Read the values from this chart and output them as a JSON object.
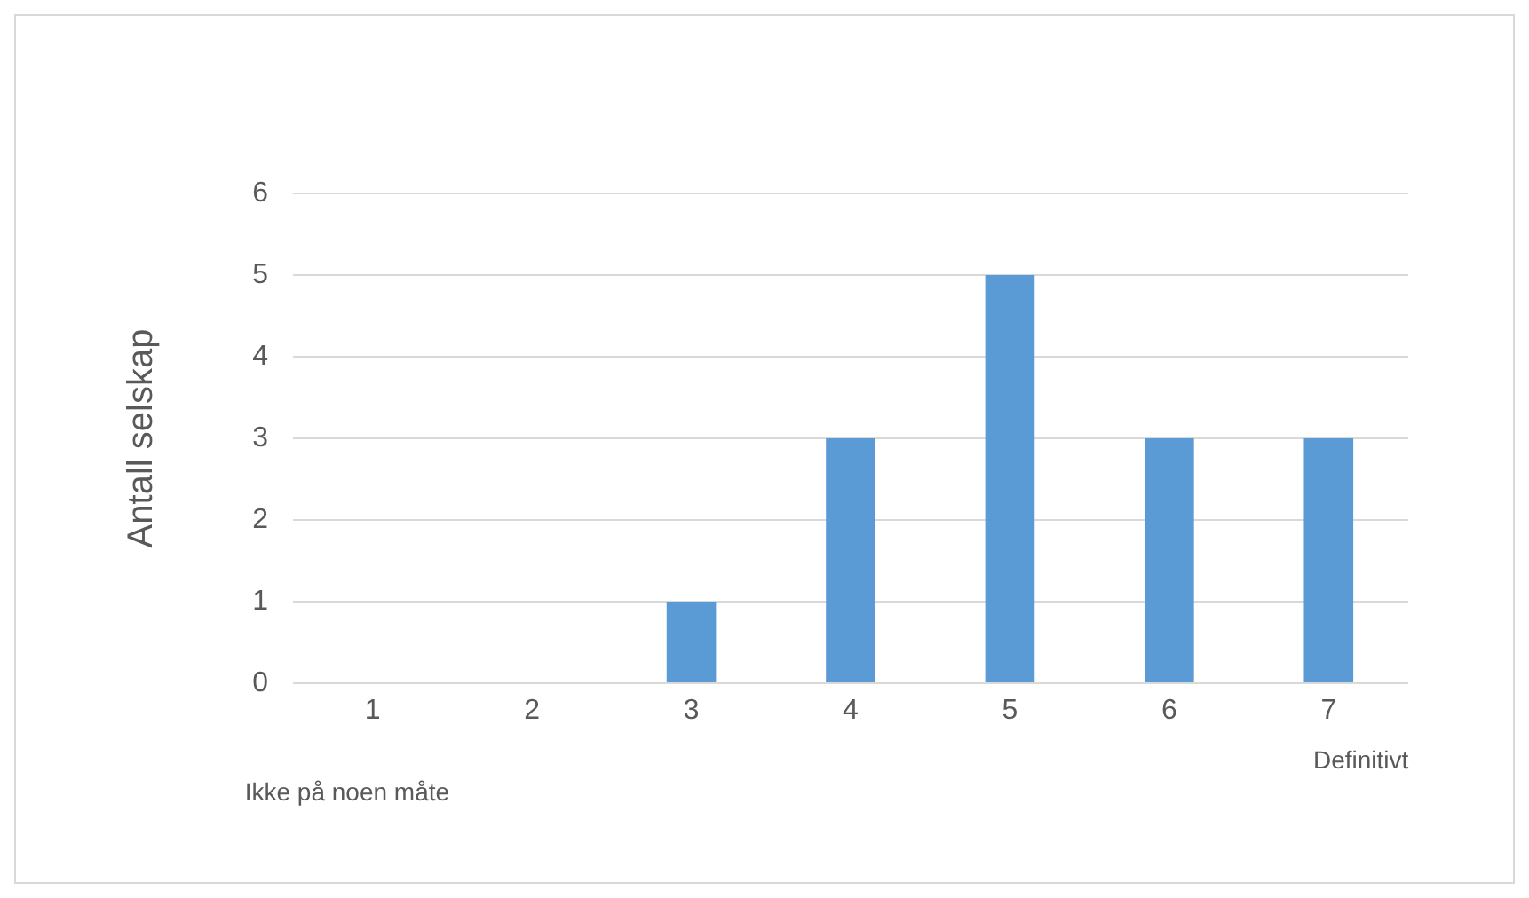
{
  "chart_data": {
    "type": "bar",
    "ylabel": "Antall selskap",
    "categories": [
      "1",
      "2",
      "3",
      "4",
      "5",
      "6",
      "7"
    ],
    "values": [
      0,
      0,
      1,
      3,
      5,
      3,
      3
    ],
    "color": "#5b9bd5",
    "ylim": [
      0,
      6
    ],
    "yticks": [
      0,
      1,
      2,
      3,
      4,
      5,
      6
    ],
    "grid": "y",
    "legend": false,
    "annotations": [
      "Ikke på noen måte",
      "Definitivt"
    ]
  }
}
